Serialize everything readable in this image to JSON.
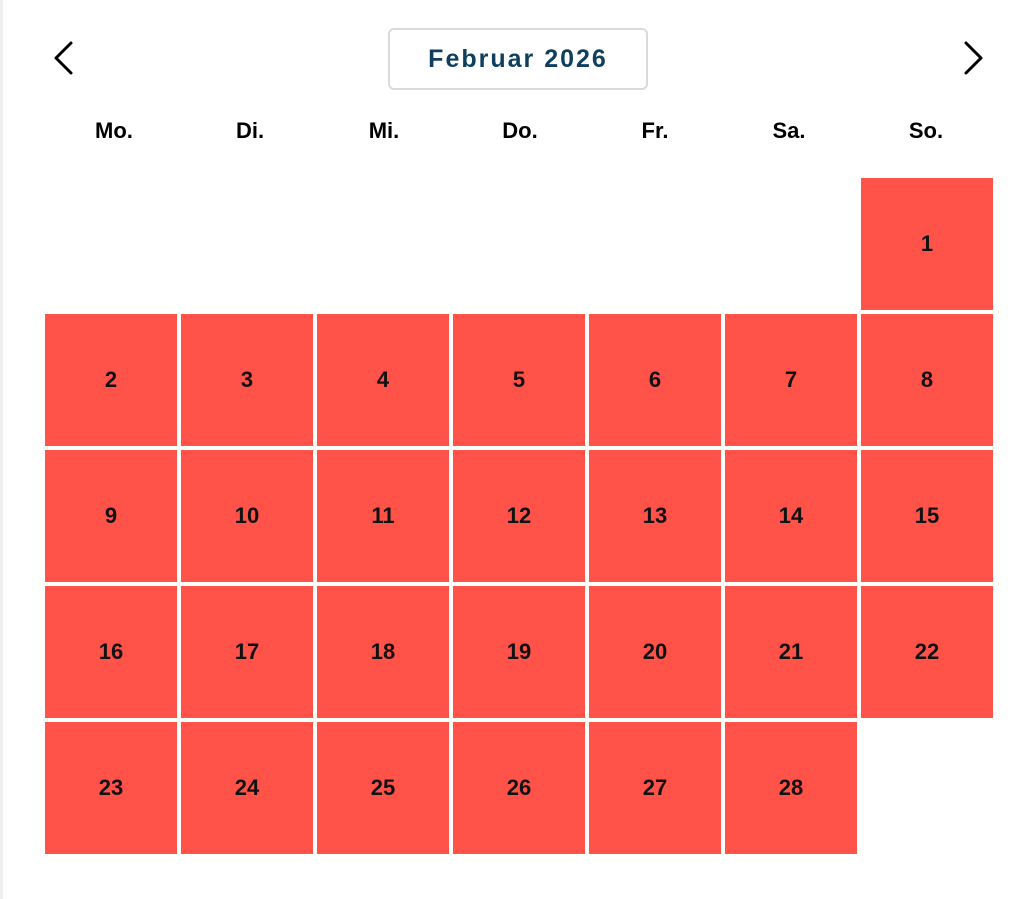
{
  "header": {
    "month_label": "Februar 2026",
    "prev_icon": "chevron-left-icon",
    "next_icon": "chevron-right-icon"
  },
  "weekdays": [
    "Mo.",
    "Di.",
    "Mi.",
    "Do.",
    "Fr.",
    "Sa.",
    "So."
  ],
  "calendar": {
    "first_weekday_index": 6,
    "day_color": "#ff5248",
    "days": [
      "1",
      "2",
      "3",
      "4",
      "5",
      "6",
      "7",
      "8",
      "9",
      "10",
      "11",
      "12",
      "13",
      "14",
      "15",
      "16",
      "17",
      "18",
      "19",
      "20",
      "21",
      "22",
      "23",
      "24",
      "25",
      "26",
      "27",
      "28"
    ]
  }
}
